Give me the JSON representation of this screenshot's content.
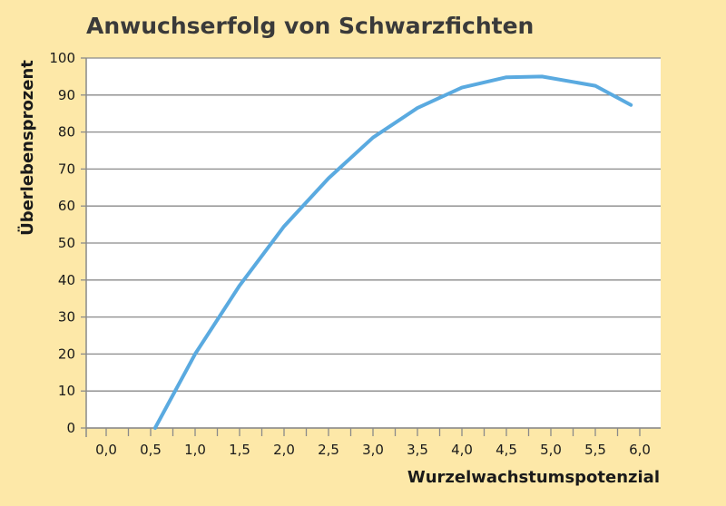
{
  "chart_data": {
    "type": "line",
    "title": "Anwuchserfolg von Schwarzfichten",
    "xlabel": "Wurzelwachstumspotenzial",
    "ylabel": "Überlebensprozent",
    "xlim": [
      0,
      6.4
    ],
    "ylim": [
      0,
      100
    ],
    "x_ticks": [
      0.0,
      0.5,
      1.0,
      1.5,
      2.0,
      2.5,
      3.0,
      3.5,
      4.0,
      4.5,
      5.0,
      5.5,
      6.0
    ],
    "x_tick_labels": [
      "0,0",
      "0,5",
      "1,0",
      "1,5",
      "2,0",
      "2,5",
      "3,0",
      "3,5",
      "4,0",
      "4,5",
      "5,0",
      "5,5",
      "6,0"
    ],
    "y_ticks": [
      0,
      10,
      20,
      30,
      40,
      50,
      60,
      70,
      80,
      90,
      100
    ],
    "y_tick_labels": [
      "0",
      "10",
      "20",
      "30",
      "40",
      "50",
      "60",
      "70",
      "80",
      "90",
      "100"
    ],
    "grid": "horizontal",
    "legend": "none",
    "line_color": "#5aaae0",
    "series": [
      {
        "x": [
          0.55,
          1.0,
          1.5,
          2.0,
          2.5,
          3.0,
          3.5,
          4.0,
          4.5,
          4.9,
          5.5,
          5.9
        ],
        "y": [
          0,
          20,
          38.5,
          54.5,
          67.5,
          78.5,
          86.5,
          92,
          94.8,
          95,
          92.5,
          87.3
        ]
      }
    ]
  }
}
